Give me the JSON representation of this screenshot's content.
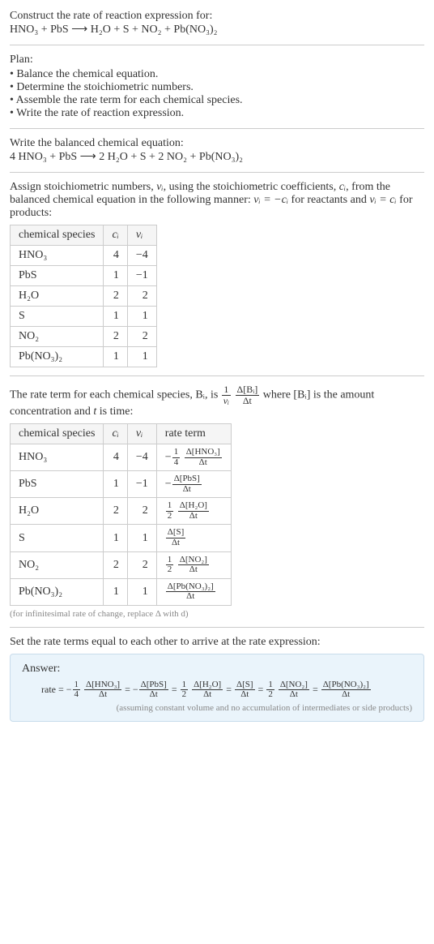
{
  "title": "Construct the rate of reaction expression for:",
  "unbalanced_equation": "HNO₃ + PbS ⟶ H₂O + S + NO₂ + Pb(NO₃)₂",
  "plan_heading": "Plan:",
  "plan_steps": [
    "Balance the chemical equation.",
    "Determine the stoichiometric numbers.",
    "Assemble the rate term for each chemical species.",
    "Write the rate of reaction expression."
  ],
  "balanced_heading": "Write the balanced chemical equation:",
  "balanced_equation": "4 HNO₃ + PbS ⟶ 2 H₂O + S + 2 NO₂ + Pb(NO₃)₂",
  "assign_text_a": "Assign stoichiometric numbers, ",
  "assign_text_b": ", using the stoichiometric coefficients, ",
  "assign_text_c": ", from the balanced chemical equation in the following manner: ",
  "assign_text_d": " for reactants and ",
  "assign_text_e": " for products:",
  "nu_i": "νᵢ",
  "c_i": "cᵢ",
  "nu_eq_neg_c": "νᵢ = −cᵢ",
  "nu_eq_c": "νᵢ = cᵢ",
  "stoich_table": {
    "headers": [
      "chemical species",
      "cᵢ",
      "νᵢ"
    ],
    "rows": [
      {
        "species": "HNO₃",
        "c": "4",
        "nu": "−4"
      },
      {
        "species": "PbS",
        "c": "1",
        "nu": "−1"
      },
      {
        "species": "H₂O",
        "c": "2",
        "nu": "2"
      },
      {
        "species": "S",
        "c": "1",
        "nu": "1"
      },
      {
        "species": "NO₂",
        "c": "2",
        "nu": "2"
      },
      {
        "species": "Pb(NO₃)₂",
        "c": "1",
        "nu": "1"
      }
    ]
  },
  "rateterm_text_a": "The rate term for each chemical species, Bᵢ, is ",
  "rateterm_frac1_num": "1",
  "rateterm_frac1_den": "νᵢ",
  "rateterm_frac2_num": "Δ[Bᵢ]",
  "rateterm_frac2_den": "Δt",
  "rateterm_text_b": " where [Bᵢ] is the amount concentration and ",
  "rateterm_t": "t",
  "rateterm_text_c": " is time:",
  "rate_table": {
    "headers": [
      "chemical species",
      "cᵢ",
      "νᵢ",
      "rate term"
    ],
    "rows": [
      {
        "species": "HNO₃",
        "c": "4",
        "nu": "−4",
        "pre_num": "1",
        "pre_den": "4",
        "neg": "−",
        "dnum": "Δ[HNO₃]",
        "dden": "Δt"
      },
      {
        "species": "PbS",
        "c": "1",
        "nu": "−1",
        "pre_num": "",
        "pre_den": "",
        "neg": "−",
        "dnum": "Δ[PbS]",
        "dden": "Δt"
      },
      {
        "species": "H₂O",
        "c": "2",
        "nu": "2",
        "pre_num": "1",
        "pre_den": "2",
        "neg": "",
        "dnum": "Δ[H₂O]",
        "dden": "Δt"
      },
      {
        "species": "S",
        "c": "1",
        "nu": "1",
        "pre_num": "",
        "pre_den": "",
        "neg": "",
        "dnum": "Δ[S]",
        "dden": "Δt"
      },
      {
        "species": "NO₂",
        "c": "2",
        "nu": "2",
        "pre_num": "1",
        "pre_den": "2",
        "neg": "",
        "dnum": "Δ[NO₂]",
        "dden": "Δt"
      },
      {
        "species": "Pb(NO₃)₂",
        "c": "1",
        "nu": "1",
        "pre_num": "",
        "pre_den": "",
        "neg": "",
        "dnum": "Δ[Pb(NO₃)₂]",
        "dden": "Δt"
      }
    ]
  },
  "infinitesimal_note": "(for infinitesimal rate of change, replace Δ with d)",
  "set_equal_text": "Set the rate terms equal to each other to arrive at the rate expression:",
  "answer_label": "Answer:",
  "answer_rate_prefix": "rate = ",
  "answer_terms": [
    {
      "neg": "−",
      "pre_num": "1",
      "pre_den": "4",
      "dnum": "Δ[HNO₃]",
      "dden": "Δt"
    },
    {
      "neg": "−",
      "pre_num": "",
      "pre_den": "",
      "dnum": "Δ[PbS]",
      "dden": "Δt"
    },
    {
      "neg": "",
      "pre_num": "1",
      "pre_den": "2",
      "dnum": "Δ[H₂O]",
      "dden": "Δt"
    },
    {
      "neg": "",
      "pre_num": "",
      "pre_den": "",
      "dnum": "Δ[S]",
      "dden": "Δt"
    },
    {
      "neg": "",
      "pre_num": "1",
      "pre_den": "2",
      "dnum": "Δ[NO₂]",
      "dden": "Δt"
    },
    {
      "neg": "",
      "pre_num": "",
      "pre_den": "",
      "dnum": "Δ[Pb(NO₃)₂]",
      "dden": "Δt"
    }
  ],
  "answer_note": "(assuming constant volume and no accumulation of intermediates or side products)",
  "colors": {
    "text": "#333333",
    "rule": "#cccccc",
    "table_border": "#cccccc",
    "header_bg": "#f5f5f5",
    "note": "#888888",
    "answer_bg": "#eaf4fb",
    "answer_border": "#c8dceb"
  }
}
